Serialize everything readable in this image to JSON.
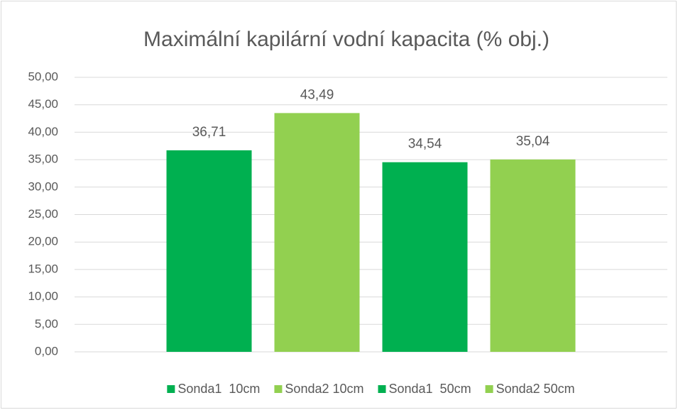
{
  "chart_data": {
    "type": "bar",
    "title": "Maximální kapilární vodní kapacita (% obj.)",
    "categories": [
      null
    ],
    "series": [
      {
        "name": "Sonda1  10cm",
        "color": "#00b050",
        "values": [
          36.71
        ],
        "value_labels": [
          "36,71"
        ]
      },
      {
        "name": "Sonda2 10cm",
        "color": "#92d050",
        "values": [
          43.49
        ],
        "value_labels": [
          "43,49"
        ]
      },
      {
        "name": "Sonda1  50cm",
        "color": "#00b050",
        "values": [
          34.54
        ],
        "value_labels": [
          "34,54"
        ]
      },
      {
        "name": "Sonda2 50cm",
        "color": "#92d050",
        "values": [
          35.04
        ],
        "value_labels": [
          "35,04"
        ]
      }
    ],
    "ylim": [
      0,
      50
    ],
    "yticks": [
      {
        "value": 0,
        "label": "0,00"
      },
      {
        "value": 5,
        "label": "5,00"
      },
      {
        "value": 10,
        "label": "10,00"
      },
      {
        "value": 15,
        "label": "15,00"
      },
      {
        "value": 20,
        "label": "20,00"
      },
      {
        "value": 25,
        "label": "25,00"
      },
      {
        "value": 30,
        "label": "30,00"
      },
      {
        "value": 35,
        "label": "35,00"
      },
      {
        "value": 40,
        "label": "40,00"
      },
      {
        "value": 45,
        "label": "45,00"
      },
      {
        "value": 50,
        "label": "50,00"
      }
    ],
    "grid": true,
    "legend": "bottom"
  }
}
